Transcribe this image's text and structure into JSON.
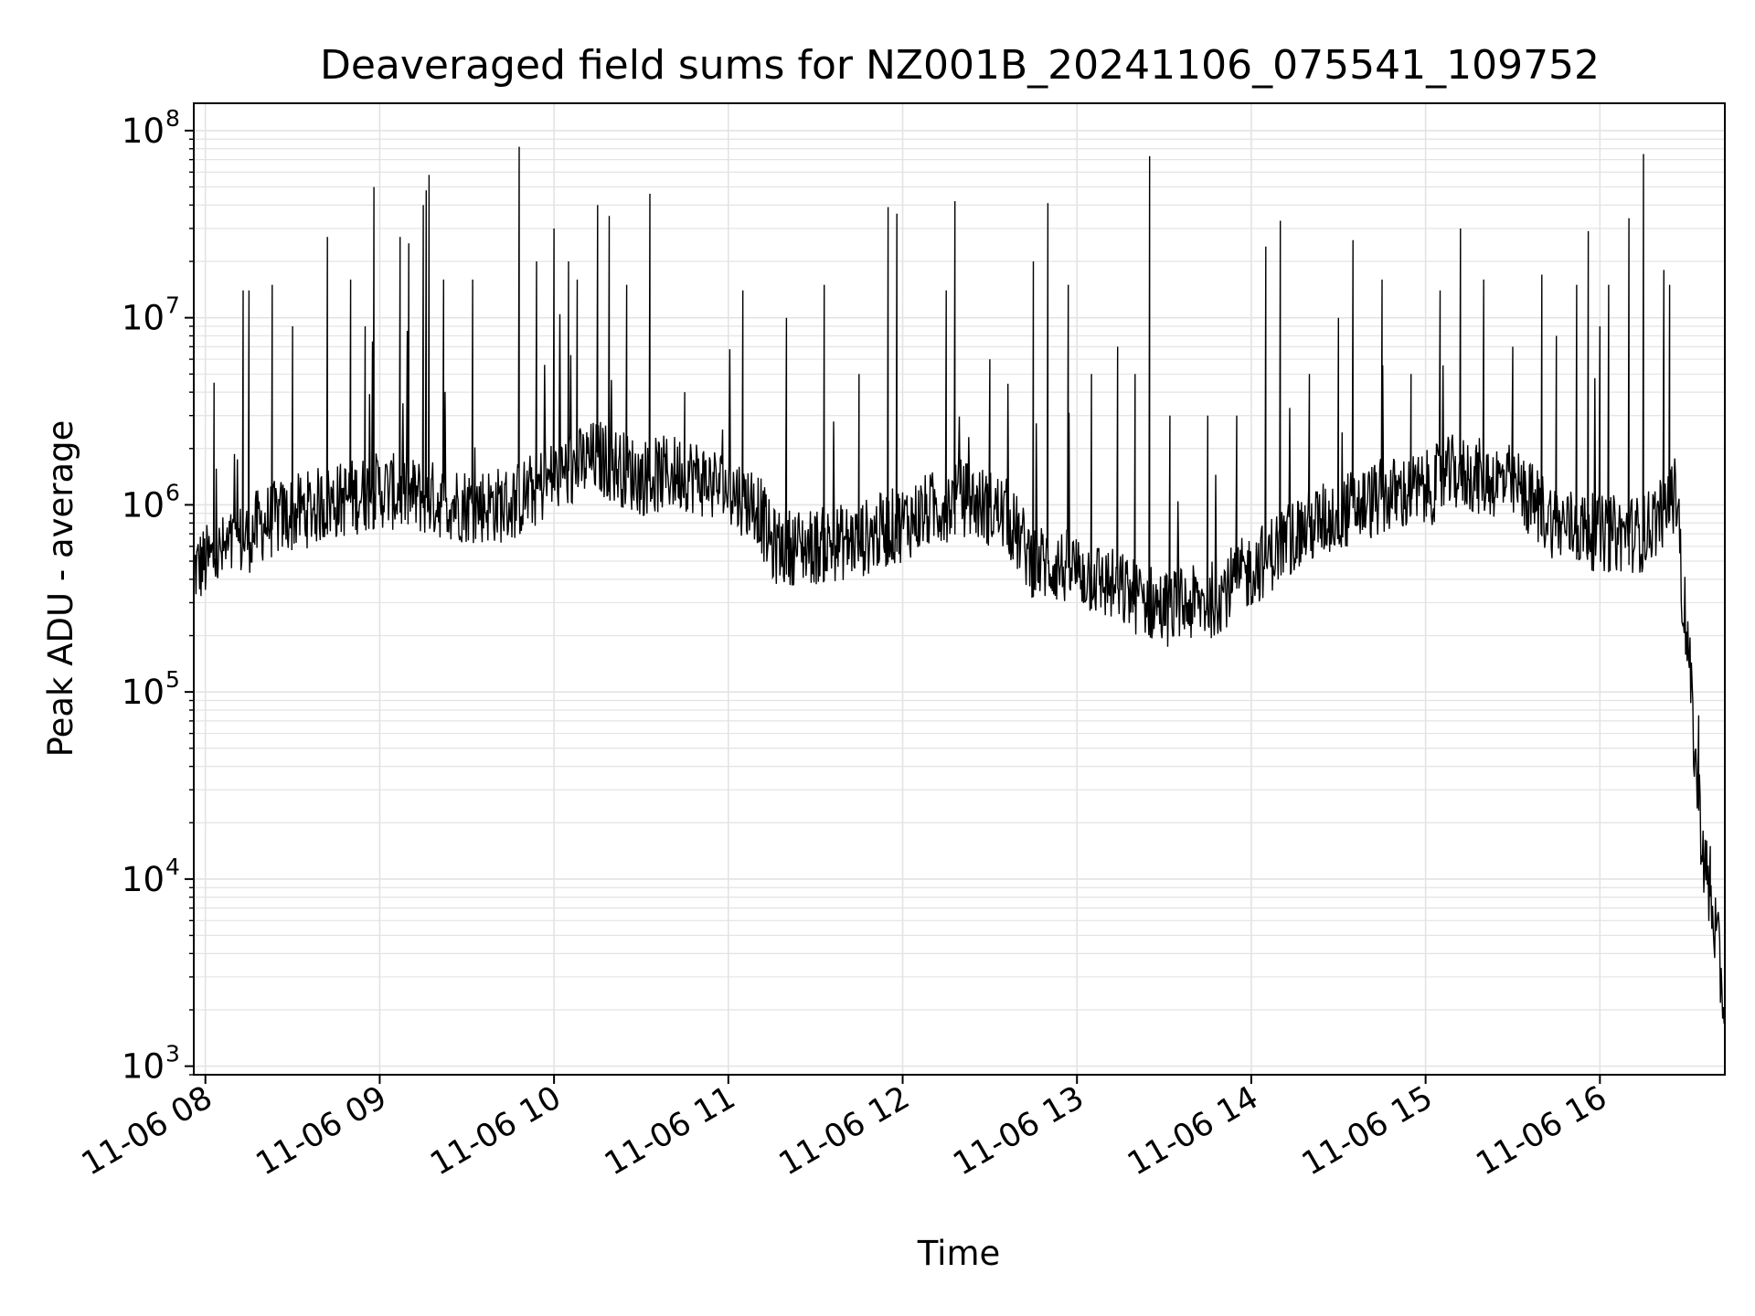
{
  "chart_data": {
    "type": "line",
    "title": "Deaveraged field sums for NZ001B_20241106_075541_109752",
    "xlabel": "Time",
    "ylabel": "Peak ADU - average",
    "y_scale": "log",
    "ylim": [
      900,
      140000000
    ],
    "xlim": [
      "2024-11-06 07:56",
      "2024-11-06 16:43"
    ],
    "grid": true,
    "series_color": "#000000",
    "x_ticks": [
      {
        "t": "2024-11-06 08:00",
        "label": "11-06 08"
      },
      {
        "t": "2024-11-06 09:00",
        "label": "11-06 09"
      },
      {
        "t": "2024-11-06 10:00",
        "label": "11-06 10"
      },
      {
        "t": "2024-11-06 11:00",
        "label": "11-06 11"
      },
      {
        "t": "2024-11-06 12:00",
        "label": "11-06 12"
      },
      {
        "t": "2024-11-06 13:00",
        "label": "11-06 13"
      },
      {
        "t": "2024-11-06 14:00",
        "label": "11-06 14"
      },
      {
        "t": "2024-11-06 15:00",
        "label": "11-06 15"
      },
      {
        "t": "2024-11-06 16:00",
        "label": "11-06 16"
      }
    ],
    "y_ticks": [
      {
        "value": 1000,
        "base": "10",
        "exp": "3"
      },
      {
        "value": 10000,
        "base": "10",
        "exp": "4"
      },
      {
        "value": 100000,
        "base": "10",
        "exp": "5"
      },
      {
        "value": 1000000,
        "base": "10",
        "exp": "6"
      },
      {
        "value": 10000000,
        "base": "10",
        "exp": "7"
      },
      {
        "value": 100000000,
        "base": "10",
        "exp": "8"
      }
    ],
    "series": [
      {
        "baseline": [
          [
            "2024-11-06 07:56",
            450000
          ],
          [
            "2024-11-06 08:10",
            600000
          ],
          [
            "2024-11-06 08:20",
            800000
          ],
          [
            "2024-11-06 08:40",
            1000000
          ],
          [
            "2024-11-06 09:00",
            1200000
          ],
          [
            "2024-11-06 09:30",
            1000000
          ],
          [
            "2024-11-06 09:45",
            1000000
          ],
          [
            "2024-11-06 10:00",
            1400000
          ],
          [
            "2024-11-06 10:15",
            1800000
          ],
          [
            "2024-11-06 10:30",
            1400000
          ],
          [
            "2024-11-06 10:45",
            1500000
          ],
          [
            "2024-11-06 11:00",
            1200000
          ],
          [
            "2024-11-06 11:10",
            1000000
          ],
          [
            "2024-11-06 11:15",
            600000
          ],
          [
            "2024-11-06 11:30",
            600000
          ],
          [
            "2024-11-06 11:45",
            650000
          ],
          [
            "2024-11-06 12:00",
            800000
          ],
          [
            "2024-11-06 12:20",
            1100000
          ],
          [
            "2024-11-06 12:35",
            900000
          ],
          [
            "2024-11-06 12:45",
            500000
          ],
          [
            "2024-11-06 13:00",
            450000
          ],
          [
            "2024-11-06 13:15",
            350000
          ],
          [
            "2024-11-06 13:30",
            280000
          ],
          [
            "2024-11-06 13:45",
            300000
          ],
          [
            "2024-11-06 14:00",
            450000
          ],
          [
            "2024-11-06 14:15",
            700000
          ],
          [
            "2024-11-06 14:30",
            900000
          ],
          [
            "2024-11-06 14:45",
            1100000
          ],
          [
            "2024-11-06 15:00",
            1200000
          ],
          [
            "2024-11-06 15:10",
            1500000
          ],
          [
            "2024-11-06 15:30",
            1300000
          ],
          [
            "2024-11-06 15:45",
            800000
          ],
          [
            "2024-11-06 16:00",
            700000
          ],
          [
            "2024-11-06 16:05",
            700000
          ],
          [
            "2024-11-06 16:15",
            700000
          ],
          [
            "2024-11-06 16:27",
            1200000
          ],
          [
            "2024-11-06 16:28",
            400000
          ],
          [
            "2024-11-06 16:30",
            200000
          ],
          [
            "2024-11-06 16:33",
            40000
          ],
          [
            "2024-11-06 16:36",
            12000
          ],
          [
            "2024-11-06 16:40",
            5000
          ],
          [
            "2024-11-06 16:43",
            2000
          ]
        ],
        "spikes": [
          [
            "2024-11-06 08:03",
            4500000
          ],
          [
            "2024-11-06 08:13",
            14000000
          ],
          [
            "2024-11-06 08:15",
            14000000
          ],
          [
            "2024-11-06 08:23",
            15000000
          ],
          [
            "2024-11-06 08:30",
            9000000
          ],
          [
            "2024-11-06 08:42",
            27000000
          ],
          [
            "2024-11-06 08:50",
            16000000
          ],
          [
            "2024-11-06 08:55",
            9000000
          ],
          [
            "2024-11-06 08:58",
            50000000
          ],
          [
            "2024-11-06 09:07",
            27000000
          ],
          [
            "2024-11-06 09:10",
            25000000
          ],
          [
            "2024-11-06 09:15",
            40000000
          ],
          [
            "2024-11-06 09:16",
            48000000
          ],
          [
            "2024-11-06 09:17",
            58000000
          ],
          [
            "2024-11-06 09:22",
            16000000
          ],
          [
            "2024-11-06 09:32",
            16000000
          ],
          [
            "2024-11-06 09:48",
            82000000
          ],
          [
            "2024-11-06 09:54",
            20000000
          ],
          [
            "2024-11-06 10:00",
            30000000
          ],
          [
            "2024-11-06 10:05",
            20000000
          ],
          [
            "2024-11-06 10:08",
            16000000
          ],
          [
            "2024-11-06 10:15",
            40000000
          ],
          [
            "2024-11-06 10:19",
            35000000
          ],
          [
            "2024-11-06 10:25",
            15000000
          ],
          [
            "2024-11-06 10:33",
            46000000
          ],
          [
            "2024-11-06 10:45",
            4000000
          ],
          [
            "2024-11-06 11:05",
            14000000
          ],
          [
            "2024-11-06 11:20",
            10000000
          ],
          [
            "2024-11-06 11:33",
            15000000
          ],
          [
            "2024-11-06 11:45",
            5000000
          ],
          [
            "2024-11-06 11:55",
            39000000
          ],
          [
            "2024-11-06 11:58",
            36000000
          ],
          [
            "2024-11-06 12:15",
            14000000
          ],
          [
            "2024-11-06 12:18",
            42000000
          ],
          [
            "2024-11-06 12:30",
            6000000
          ],
          [
            "2024-11-06 12:45",
            20000000
          ],
          [
            "2024-11-06 12:50",
            41000000
          ],
          [
            "2024-11-06 12:57",
            15000000
          ],
          [
            "2024-11-06 13:05",
            5000000
          ],
          [
            "2024-11-06 13:14",
            7000000
          ],
          [
            "2024-11-06 13:20",
            5000000
          ],
          [
            "2024-11-06 13:25",
            73000000
          ],
          [
            "2024-11-06 13:32",
            3000000
          ],
          [
            "2024-11-06 13:45",
            3000000
          ],
          [
            "2024-11-06 13:55",
            3000000
          ],
          [
            "2024-11-06 14:05",
            24000000
          ],
          [
            "2024-11-06 14:10",
            33000000
          ],
          [
            "2024-11-06 14:20",
            5000000
          ],
          [
            "2024-11-06 14:30",
            10000000
          ],
          [
            "2024-11-06 14:35",
            26000000
          ],
          [
            "2024-11-06 14:45",
            16000000
          ],
          [
            "2024-11-06 14:55",
            5000000
          ],
          [
            "2024-11-06 15:05",
            14000000
          ],
          [
            "2024-11-06 15:12",
            30000000
          ],
          [
            "2024-11-06 15:20",
            16000000
          ],
          [
            "2024-11-06 15:30",
            7000000
          ],
          [
            "2024-11-06 15:40",
            17000000
          ],
          [
            "2024-11-06 15:45",
            8000000
          ],
          [
            "2024-11-06 15:52",
            15000000
          ],
          [
            "2024-11-06 15:56",
            29000000
          ],
          [
            "2024-11-06 16:00",
            9000000
          ],
          [
            "2024-11-06 16:03",
            15000000
          ],
          [
            "2024-11-06 16:10",
            34000000
          ],
          [
            "2024-11-06 16:15",
            75000000
          ],
          [
            "2024-11-06 16:22",
            18000000
          ],
          [
            "2024-11-06 16:24",
            15000000
          ],
          [
            "2024-11-06 16:34",
            75000
          ],
          [
            "2024-11-06 16:38",
            15000
          ]
        ]
      }
    ]
  }
}
